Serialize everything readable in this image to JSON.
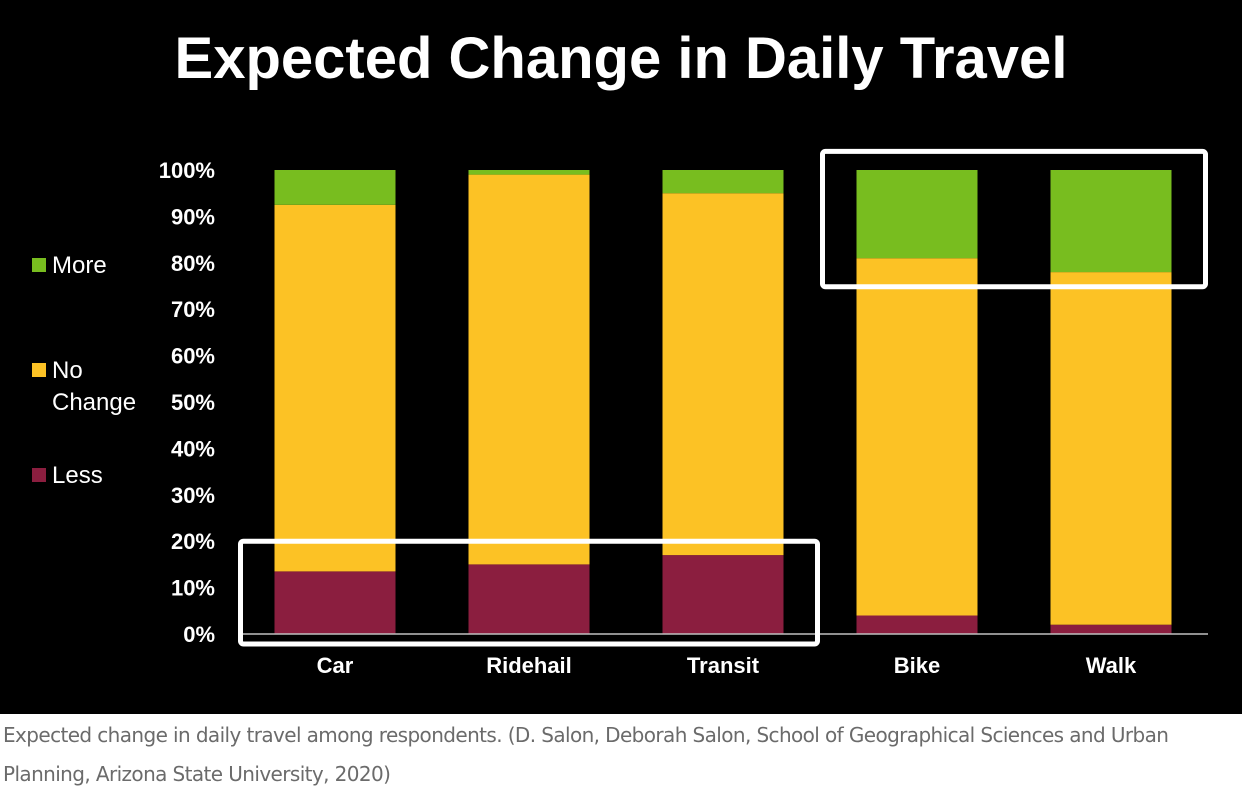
{
  "caption": "Expected change in daily travel among respondents. (D. Salon, Deborah Salon, School of Geographical Sciences and Urban Planning, Arizona State University, 2020)",
  "chart_data": {
    "type": "bar",
    "stacked": true,
    "title": "Expected Change in Daily Travel",
    "xlabel": "",
    "ylabel": "",
    "ylim": [
      0,
      100
    ],
    "yticks": [
      "0%",
      "10%",
      "20%",
      "30%",
      "40%",
      "50%",
      "60%",
      "70%",
      "80%",
      "90%",
      "100%"
    ],
    "categories": [
      "Car",
      "Ridehail",
      "Transit",
      "Bike",
      "Walk"
    ],
    "series": [
      {
        "name": "Less",
        "color": "#8b1e3f",
        "values": [
          13.5,
          15,
          17,
          4,
          2
        ]
      },
      {
        "name": "No Change",
        "color": "#fcc225",
        "values": [
          79,
          84,
          78,
          77,
          76
        ]
      },
      {
        "name": "More",
        "color": "#78bd1f",
        "values": [
          7.5,
          1,
          5,
          19,
          22
        ]
      }
    ],
    "legend": {
      "position": "left",
      "entries": [
        {
          "lines": [
            "More"
          ],
          "series": "More"
        },
        {
          "lines": [
            "No",
            "Change"
          ],
          "series": "No Change"
        },
        {
          "lines": [
            "Less"
          ],
          "series": "Less"
        }
      ]
    },
    "highlight_boxes": [
      {
        "categories": [
          "Car",
          "Ridehail",
          "Transit"
        ],
        "y_range": [
          0,
          20
        ]
      },
      {
        "categories": [
          "Bike",
          "Walk"
        ],
        "y_range": [
          77,
          104
        ]
      }
    ],
    "grid": false
  }
}
